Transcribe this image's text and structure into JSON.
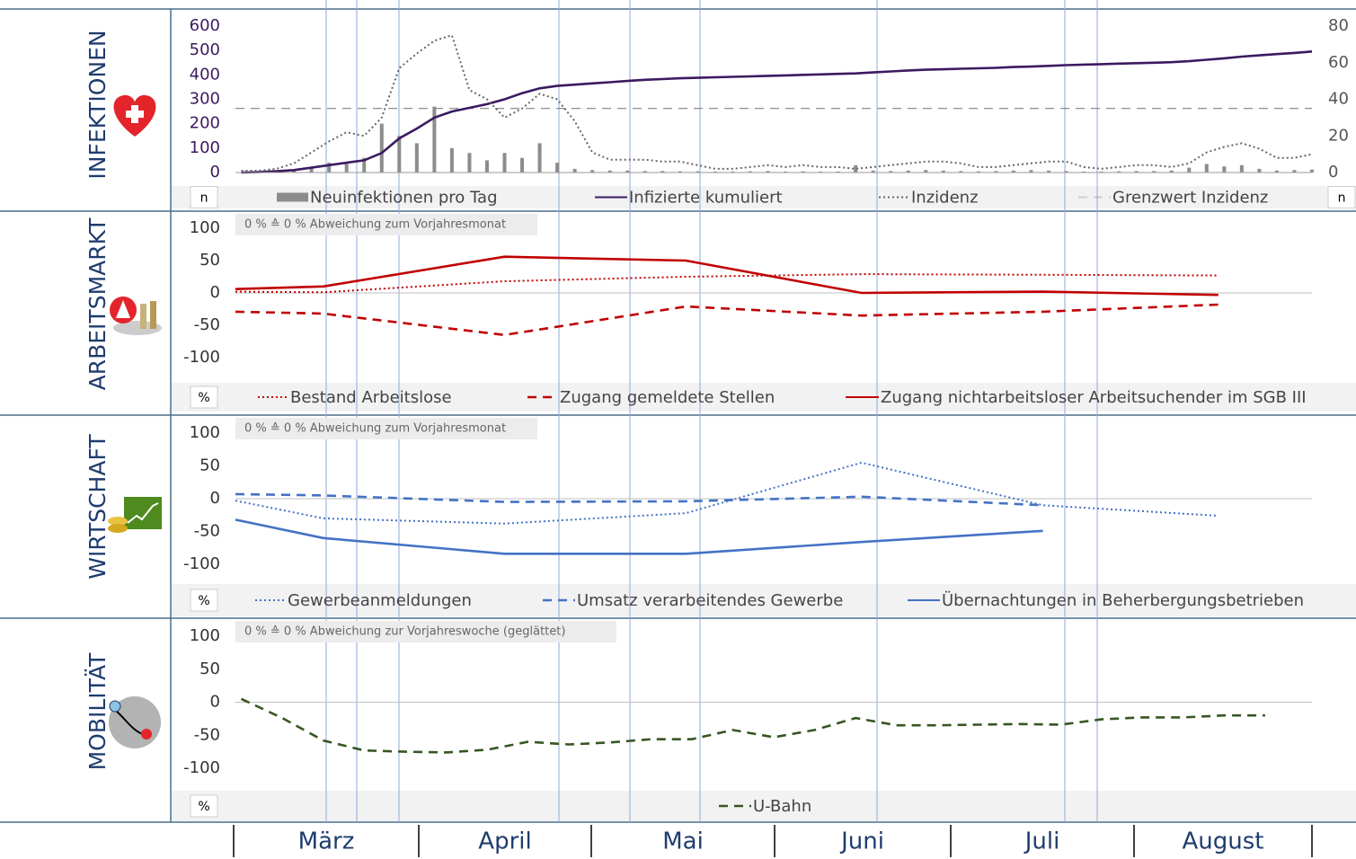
{
  "chart_data": [
    {
      "type": "combo",
      "panel_label": "INFEKTIONEN",
      "unit_label": "n",
      "x": [
        61,
        64,
        67,
        70,
        73,
        76,
        79,
        82,
        85,
        88,
        91,
        94,
        97,
        100,
        103,
        106,
        109,
        112,
        115,
        118,
        121,
        124,
        127,
        130,
        133,
        136,
        139,
        142,
        145,
        148,
        151,
        154,
        157,
        160,
        163,
        166,
        169,
        172,
        175,
        178,
        181,
        184,
        187,
        190,
        193,
        196,
        199,
        202,
        205,
        208,
        211,
        214,
        217,
        220,
        223,
        226,
        229,
        232,
        235,
        238,
        241,
        244
      ],
      "xlim": [
        60,
        244
      ],
      "ylim": [
        0,
        600
      ],
      "yticks": [
        0,
        100,
        200,
        300,
        400,
        500,
        600
      ],
      "y2lim": [
        0,
        80
      ],
      "y2ticks": [
        0,
        20,
        40,
        60,
        80
      ],
      "series": [
        {
          "name": "Neuinfektionen pro Tag",
          "kind": "bar",
          "color": "#8c8c8c",
          "values": [
            0,
            1,
            3,
            8,
            20,
            40,
            35,
            60,
            200,
            150,
            120,
            270,
            100,
            80,
            50,
            80,
            60,
            120,
            40,
            15,
            10,
            8,
            8,
            6,
            6,
            5,
            5,
            4,
            4,
            5,
            6,
            4,
            5,
            4,
            4,
            30,
            8,
            6,
            8,
            10,
            8,
            6,
            5,
            6,
            8,
            10,
            8,
            6,
            4,
            4,
            5,
            6,
            6,
            8,
            20,
            35,
            25,
            30,
            15,
            8,
            10,
            12
          ]
        },
        {
          "name": "Infizierte kumuliert",
          "kind": "line",
          "style": "solid",
          "color": "#3b1a60",
          "values": [
            0,
            2,
            5,
            10,
            20,
            30,
            40,
            50,
            80,
            140,
            180,
            225,
            250,
            265,
            280,
            300,
            325,
            345,
            355,
            360,
            365,
            370,
            375,
            380,
            383,
            386,
            388,
            390,
            392,
            394,
            396,
            398,
            400,
            402,
            404,
            406,
            410,
            414,
            418,
            421,
            423,
            425,
            427,
            429,
            432,
            434,
            437,
            440,
            442,
            444,
            446,
            448,
            450,
            452,
            456,
            462,
            468,
            475,
            480,
            485,
            490,
            496
          ]
        },
        {
          "name": "Inzidenz",
          "kind": "line",
          "style": "dotted",
          "color": "#666666",
          "axis": "y2",
          "values": [
            1,
            1,
            2,
            5,
            11,
            17,
            22,
            20,
            30,
            57,
            65,
            72,
            75,
            45,
            40,
            30,
            35,
            43,
            40,
            28,
            11,
            7,
            7,
            7,
            6,
            6,
            4,
            2,
            2,
            3,
            4,
            3,
            4,
            3,
            3,
            2,
            3,
            4,
            5,
            6,
            6,
            5,
            3,
            3,
            4,
            5,
            6,
            6,
            3,
            2,
            3,
            4,
            4,
            3,
            5,
            11,
            14,
            16,
            13,
            8,
            8,
            10
          ]
        }
      ],
      "hlines": [
        {
          "name": "Grenzwert Inzidenz",
          "value": 35,
          "axis": "y2",
          "style": "dashed",
          "color": "#808080"
        }
      ]
    },
    {
      "type": "line",
      "panel_label": "ARBEITSMARKT",
      "unit_label": "%",
      "note": "0 % ≙ 0 % Abweichung zum Vorjahresmonat",
      "x": [
        60,
        75,
        106,
        137,
        167,
        198,
        228
      ],
      "xlim": [
        60,
        244
      ],
      "ylim": [
        -100,
        100
      ],
      "yticks": [
        -100,
        -50,
        0,
        50,
        100
      ],
      "series": [
        {
          "name": "Bestand Arbeitslose",
          "style": "dotted",
          "color": "#c00000",
          "values": [
            2,
            1,
            18,
            25,
            29,
            28,
            27
          ]
        },
        {
          "name": "Zugang gemeldete Stellen",
          "style": "dashed",
          "color": "#c00000",
          "values": [
            -29,
            -32,
            -65,
            -21,
            -35,
            -29,
            -18
          ]
        },
        {
          "name": "Zugang nichtarbeitsloser Arbeitsuchender im SGB III",
          "style": "solid",
          "color": "#c00000",
          "values": [
            6,
            10,
            56,
            50,
            0,
            2,
            -3
          ]
        }
      ]
    },
    {
      "type": "line",
      "panel_label": "WIRTSCHAFT",
      "unit_label": "%",
      "note": "0 % ≙ 0 % Abweichung zum Vorjahresmonat",
      "x": [
        60,
        75,
        106,
        137,
        167,
        198,
        228
      ],
      "xlim": [
        60,
        244
      ],
      "ylim": [
        -100,
        100
      ],
      "yticks": [
        -100,
        -50,
        0,
        50,
        100
      ],
      "series": [
        {
          "name": "Gewerbeanmeldungen",
          "style": "dotted",
          "color": "#4472c4",
          "values": [
            -3,
            -30,
            -38,
            -22,
            55,
            -10,
            -26
          ]
        },
        {
          "name": "Umsatz verarbeitendes Gewerbe",
          "style": "dashed",
          "color": "#4472c4",
          "values": [
            7,
            5,
            -5,
            -4,
            3,
            -10,
            null
          ]
        },
        {
          "name": "Übernachtungen in Beherbergungsbetrieben",
          "style": "solid",
          "color": "#4472c4",
          "values": [
            -32,
            -60,
            -84,
            -84,
            -66,
            -49,
            null
          ]
        }
      ]
    },
    {
      "type": "line",
      "panel_label": "MOBILITÄT",
      "unit_label": "%",
      "note": "0 % ≙ 0 % Abweichung zur Vorjahreswoche (geglättet)",
      "x": [
        61,
        68,
        75,
        82,
        89,
        96,
        103,
        110,
        117,
        124,
        131,
        138,
        145,
        152,
        159,
        166,
        173,
        180,
        187,
        194,
        201,
        208,
        215,
        222,
        229,
        236
      ],
      "xlim": [
        60,
        244
      ],
      "ylim": [
        -100,
        100
      ],
      "yticks": [
        -100,
        -50,
        0,
        50,
        100
      ],
      "series": [
        {
          "name": "U-Bahn",
          "style": "dashed",
          "color": "#375623",
          "values": [
            5,
            -24,
            -58,
            -73,
            -75,
            -76,
            -72,
            -60,
            -64,
            -61,
            -56,
            -56,
            -42,
            -53,
            -42,
            -24,
            -35,
            -35,
            -34,
            -33,
            -34,
            -26,
            -23,
            -23,
            -20,
            -20
          ]
        }
      ]
    }
  ],
  "months": [
    "März",
    "April",
    "Mai",
    "Juni",
    "Juli",
    "August"
  ]
}
